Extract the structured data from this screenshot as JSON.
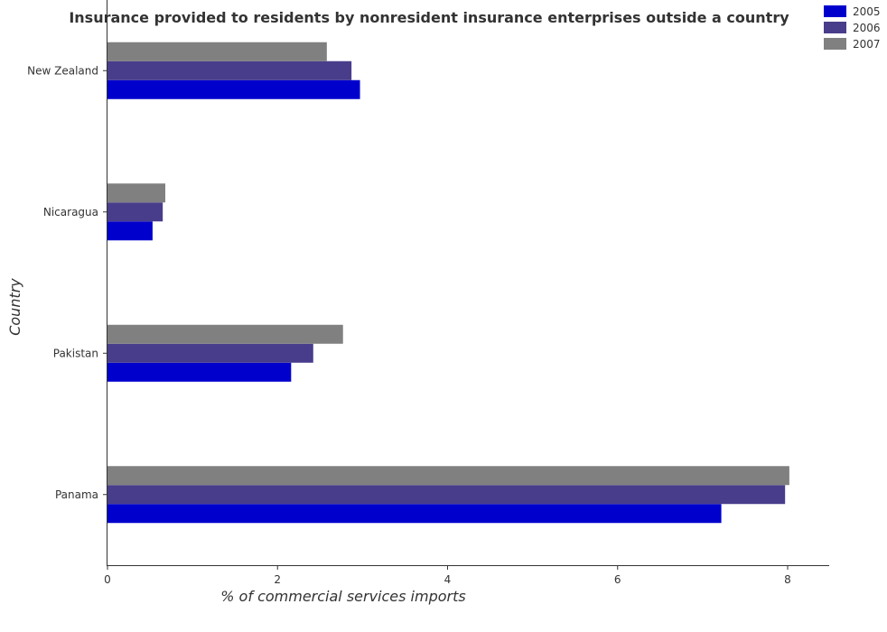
{
  "chart_data": {
    "type": "bar",
    "orientation": "horizontal",
    "title": "Insurance provided to residents by nonresident insurance enterprises outside a country",
    "xlabel": "% of commercial services imports",
    "ylabel": "Country",
    "categories": [
      "New Zealand",
      "Nicaragua",
      "Pakistan",
      "Panama"
    ],
    "series": [
      {
        "name": "2005",
        "color": "#0000cd",
        "values": [
          2.97,
          0.53,
          2.16,
          7.22
        ]
      },
      {
        "name": "2006",
        "color": "#483d8b",
        "values": [
          2.87,
          0.65,
          2.42,
          7.97
        ]
      },
      {
        "name": "2007",
        "color": "#808080",
        "values": [
          2.58,
          0.68,
          2.77,
          8.02
        ]
      }
    ],
    "xlim": [
      0,
      8.5
    ],
    "xticks": [
      "0",
      "2",
      "4",
      "6",
      "8"
    ],
    "xtick_values": [
      0,
      2,
      4,
      6,
      8
    ],
    "grid": false,
    "legend_position": "top-right"
  }
}
